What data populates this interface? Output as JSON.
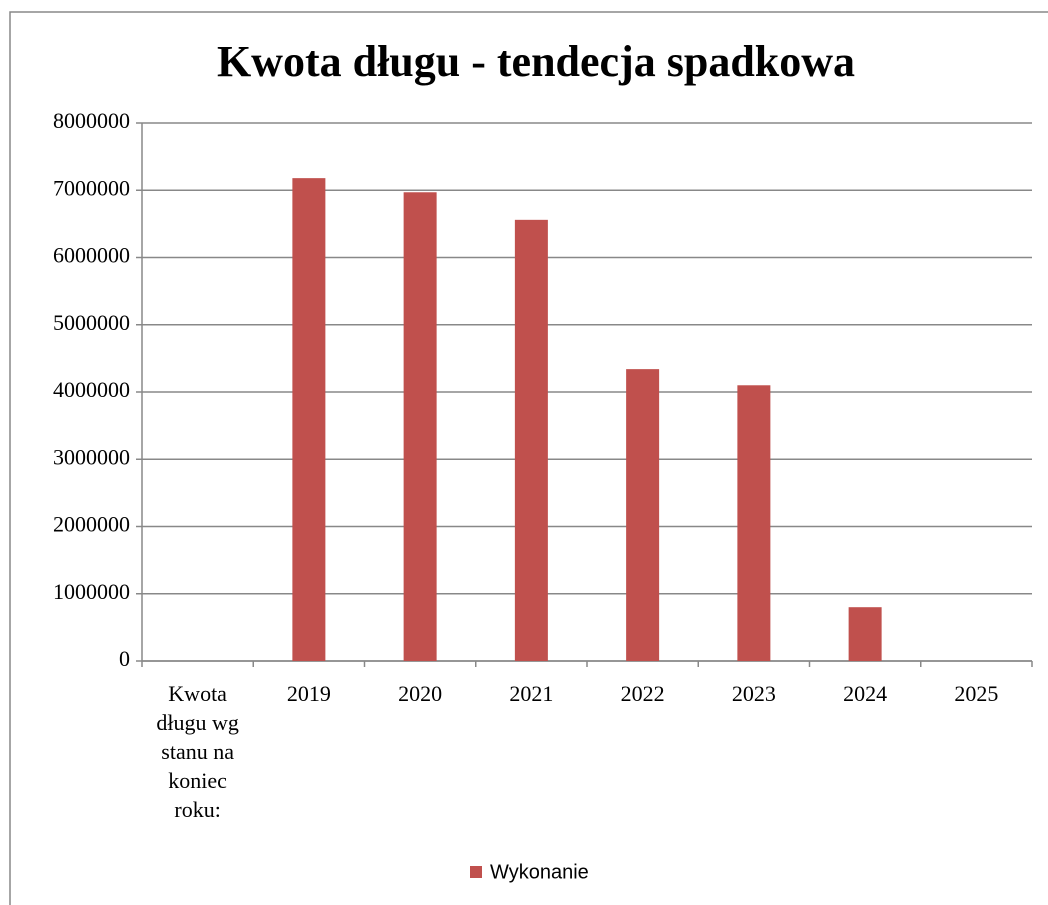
{
  "chart_data": {
    "type": "bar",
    "title": "Kwota długu - tendecja spadkowa",
    "categories": [
      "Kwota długu wg stanu na koniec roku:",
      "2019",
      "2020",
      "2021",
      "2022",
      "2023",
      "2024",
      "2025"
    ],
    "series": [
      {
        "name": "Wykonanie",
        "color": "#c0504d",
        "values": [
          null,
          7180000,
          6970000,
          6560000,
          4340000,
          4100000,
          800000,
          null
        ]
      }
    ],
    "ylim": [
      0,
      8000000
    ],
    "yticks": [
      0,
      1000000,
      2000000,
      3000000,
      4000000,
      5000000,
      6000000,
      7000000,
      8000000
    ],
    "grid": true,
    "legend": "bottom"
  }
}
